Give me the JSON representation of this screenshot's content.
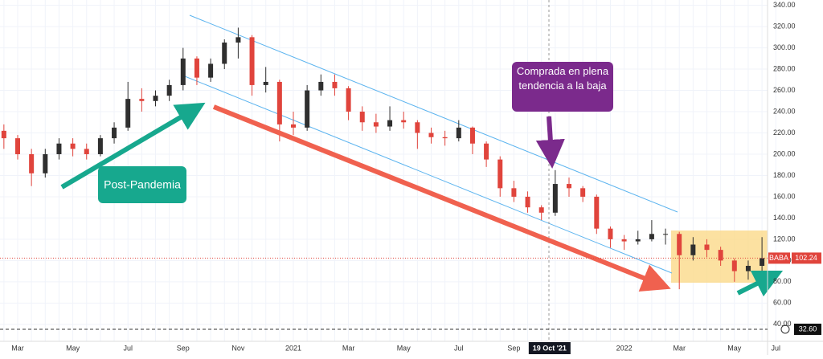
{
  "chart_data": {
    "type": "candlestick",
    "symbol": "BABA",
    "last_price": 102.24,
    "scale_label": "32.60",
    "annotations": [
      "Post-Pandemia",
      "Comprada en plena tendencia a la baja"
    ],
    "categories": [
      null,
      "Mar",
      null,
      null,
      null,
      "May",
      null,
      null,
      null,
      "Jul",
      null,
      null,
      null,
      "Sep",
      null,
      null,
      null,
      "Nov",
      null,
      null,
      null,
      "2021",
      null,
      null,
      null,
      "Mar",
      null,
      null,
      null,
      "May",
      null,
      null,
      null,
      "Jul",
      null,
      null,
      null,
      "Sep",
      null,
      null,
      "19 Oct '21",
      null,
      null,
      null,
      null,
      "2022",
      null,
      null,
      null,
      "Mar",
      null,
      null,
      null,
      "May",
      null,
      null,
      "Jul"
    ],
    "ohlc": [
      [
        222,
        228,
        205,
        215
      ],
      [
        215,
        218,
        195,
        200
      ],
      [
        200,
        205,
        170,
        182
      ],
      [
        182,
        205,
        178,
        200
      ],
      [
        200,
        215,
        195,
        210
      ],
      [
        210,
        215,
        198,
        205
      ],
      [
        205,
        210,
        195,
        200
      ],
      [
        200,
        218,
        198,
        215
      ],
      [
        215,
        230,
        210,
        225
      ],
      [
        225,
        268,
        222,
        252
      ],
      [
        252,
        262,
        240,
        250
      ],
      [
        250,
        260,
        245,
        255
      ],
      [
        255,
        270,
        250,
        265
      ],
      [
        265,
        300,
        260,
        290
      ],
      [
        290,
        292,
        265,
        272
      ],
      [
        272,
        290,
        268,
        285
      ],
      [
        285,
        308,
        280,
        305
      ],
      [
        305,
        319,
        290,
        310
      ],
      [
        310,
        312,
        255,
        265
      ],
      [
        265,
        282,
        258,
        268
      ],
      [
        268,
        270,
        212,
        228
      ],
      [
        228,
        240,
        218,
        225
      ],
      [
        225,
        265,
        222,
        260
      ],
      [
        260,
        275,
        255,
        268
      ],
      [
        268,
        275,
        255,
        262
      ],
      [
        262,
        264,
        232,
        240
      ],
      [
        240,
        245,
        222,
        230
      ],
      [
        230,
        238,
        220,
        226
      ],
      [
        226,
        245,
        222,
        232
      ],
      [
        232,
        240,
        224,
        230
      ],
      [
        230,
        232,
        205,
        220
      ],
      [
        220,
        225,
        210,
        216
      ],
      [
        216,
        222,
        208,
        215
      ],
      [
        215,
        232,
        212,
        225
      ],
      [
        225,
        226,
        200,
        210
      ],
      [
        210,
        212,
        188,
        195
      ],
      [
        195,
        198,
        160,
        168
      ],
      [
        168,
        175,
        155,
        160
      ],
      [
        160,
        165,
        145,
        150
      ],
      [
        150,
        152,
        138,
        145
      ],
      [
        145,
        185,
        142,
        172
      ],
      [
        172,
        178,
        160,
        168
      ],
      [
        168,
        170,
        155,
        160
      ],
      [
        160,
        162,
        125,
        130
      ],
      [
        130,
        132,
        112,
        120
      ],
      [
        120,
        124,
        110,
        118
      ],
      [
        118,
        128,
        115,
        120
      ],
      [
        120,
        138,
        118,
        125
      ],
      [
        125,
        130,
        115,
        125
      ],
      [
        125,
        127,
        73,
        105
      ],
      [
        105,
        122,
        100,
        115
      ],
      [
        115,
        120,
        103,
        110
      ],
      [
        110,
        113,
        95,
        100
      ],
      [
        100,
        102,
        80,
        90
      ],
      [
        90,
        100,
        82,
        95
      ],
      [
        95,
        122,
        88,
        102.24
      ],
      null
    ],
    "up_color": "#2f2f2f",
    "down_color": "#e0443c",
    "ylim": [
      24,
      345
    ],
    "yticks": [
      {
        "value": 40,
        "label": "40.00"
      },
      {
        "value": 60,
        "label": "60.00"
      },
      {
        "value": 80,
        "label": "80.00"
      },
      {
        "value": 100,
        "label": "100.00"
      },
      {
        "value": 120,
        "label": "120.00"
      },
      {
        "value": 140,
        "label": "140.00"
      },
      {
        "value": 160,
        "label": "160.00"
      },
      {
        "value": 180,
        "label": "180.00"
      },
      {
        "value": 200,
        "label": "200.00"
      },
      {
        "value": 220,
        "label": "220.00"
      },
      {
        "value": 240,
        "label": "240.00"
      },
      {
        "value": 260,
        "label": "260.00"
      },
      {
        "value": 280,
        "label": "280.00"
      },
      {
        "value": 300,
        "label": "300.00"
      },
      {
        "value": 320,
        "label": "320.00"
      },
      {
        "value": 340,
        "label": "340.00"
      }
    ],
    "grid": true
  }
}
